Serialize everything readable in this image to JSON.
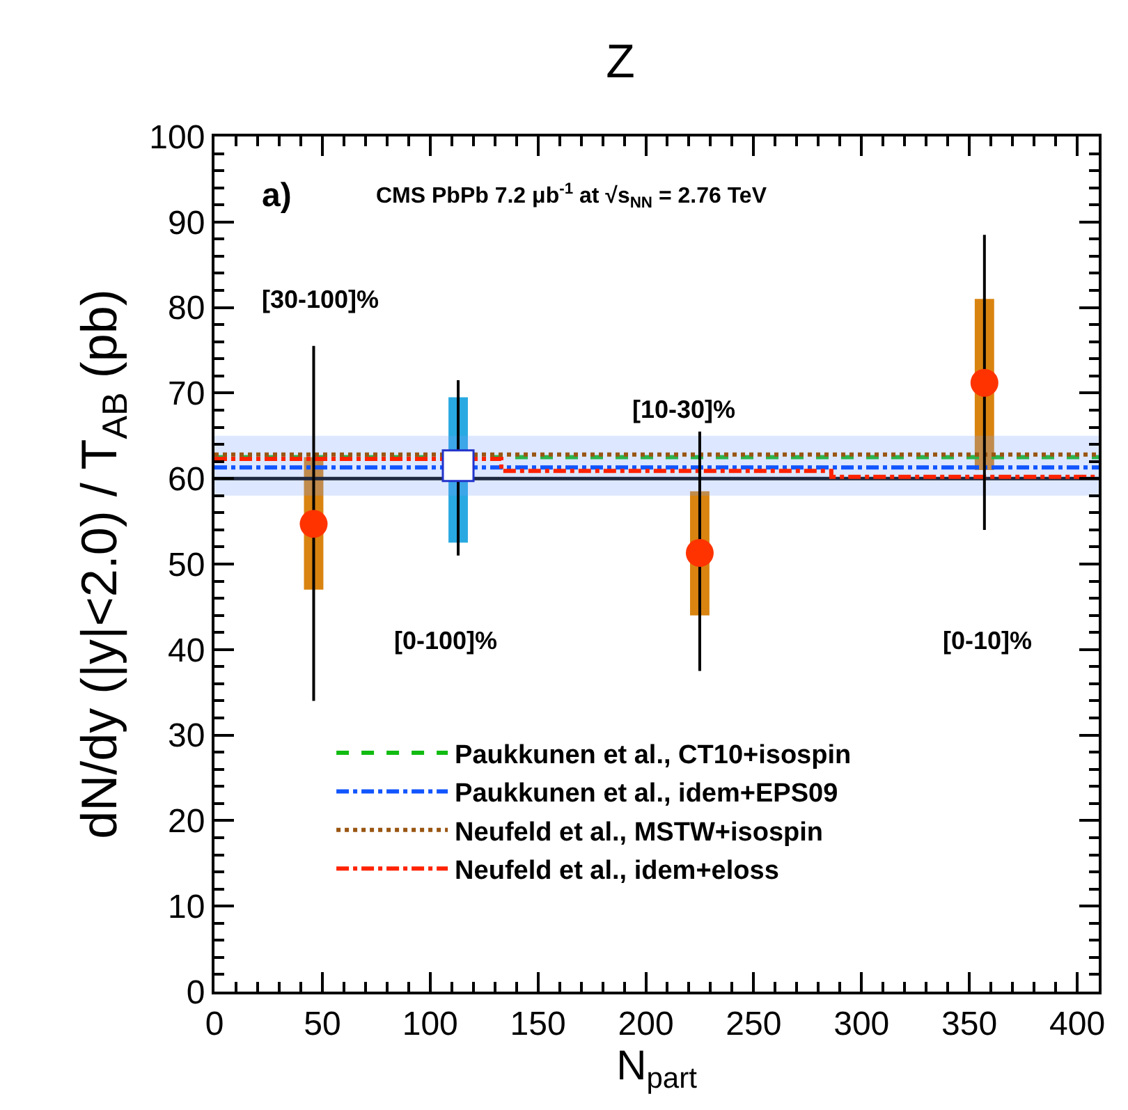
{
  "chart_data": {
    "type": "scatter",
    "title": "Z",
    "xlabel": "N$_{part}$",
    "ylabel": "dN/dy (|y|<2.0) / T$_{AB}$ (pb)",
    "annotations": [
      "a)",
      "CMS PbPb 7.2 μb$^{-1}$ at √s$_{NN}$ = 2.76 TeV",
      "[30-100]%",
      "[0-100]%",
      "[10-30]%",
      "[0-10]%"
    ],
    "xlim": [
      0,
      410
    ],
    "ylim": [
      0,
      100
    ],
    "xticks": [
      0,
      50,
      100,
      150,
      200,
      250,
      300,
      350,
      400
    ],
    "yticks": [
      0,
      10,
      20,
      30,
      40,
      50,
      60,
      70,
      80,
      90,
      100
    ],
    "grid": false,
    "legend": "bottom",
    "series": [
      {
        "type": "line",
        "color": "#000000",
        "line_style": "solid",
        "x": [
          0,
          410
        ],
        "values": [
          60,
          60
        ]
      },
      {
        "type": "line",
        "name": "Paukkunen et al., CT10+isospin",
        "color": "#11bb11",
        "line_style": "dashed",
        "x": [
          0,
          410
        ],
        "values": [
          62.5,
          62.5
        ]
      },
      {
        "type": "line",
        "name": "Paukkunen et al., idem+EPS09",
        "color": "#1155ff",
        "line_style": "dashdot",
        "x": [
          0,
          410
        ],
        "values": [
          61.3,
          61.3
        ],
        "lower": [
          58,
          58
        ],
        "upper": [
          65,
          65
        ]
      },
      {
        "type": "line",
        "name": "Neufeld et al., MSTW+isospin",
        "color": "#995511",
        "line_style": "dotted",
        "x": [
          0,
          410
        ],
        "values": [
          62.8,
          62.8
        ]
      },
      {
        "type": "step",
        "name": "Neufeld et al., idem+eloss",
        "color": "#ff2200",
        "line_style": "dashdot",
        "x": [
          0,
          133,
          286,
          410
        ],
        "values": [
          62.3,
          60.9,
          60.2,
          60.2
        ]
      },
      {
        "type": "bar",
        "x": [
          46,
          113,
          225,
          357
        ],
        "base": [
          47,
          52.5,
          44,
          61
        ],
        "values": [
          15.5,
          17,
          14.5,
          20
        ],
        "colors": [
          "#d98410",
          "#29a9e1",
          "#d98410",
          "#d98410"
        ]
      },
      {
        "marker": "circle",
        "color": "#ff3300",
        "x": [
          46,
          225,
          357
        ],
        "values": [
          54.7,
          51.3,
          71.2
        ],
        "errors": [
          [
            34,
            75.5
          ],
          [
            37.5,
            65.5
          ],
          [
            54,
            88.5
          ]
        ]
      },
      {
        "marker": "square",
        "color": "#ffffff",
        "x": [
          113
        ],
        "values": [
          61.5
        ],
        "errors": [
          [
            51,
            71.5
          ]
        ]
      }
    ]
  }
}
